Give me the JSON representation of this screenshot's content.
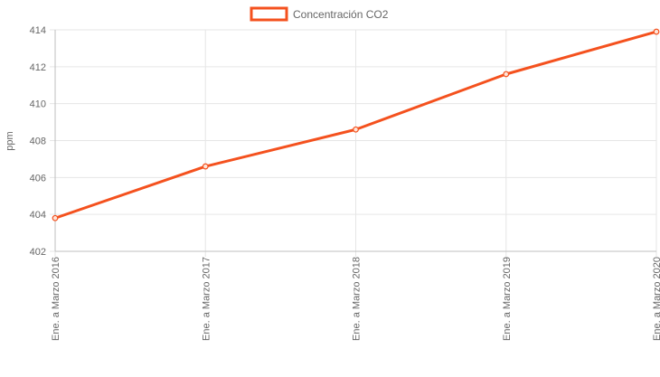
{
  "chart_data": {
    "type": "line",
    "title": "",
    "xlabel": "",
    "ylabel": "ppm",
    "categories": [
      "Ene. a Marzo 2016",
      "Ene. a Marzo 2017",
      "Ene. a Marzo 2018",
      "Ene. a Marzo 2019",
      "Ene. a Marzo 2020"
    ],
    "series": [
      {
        "name": "Concentración CO2",
        "values": [
          403.8,
          406.6,
          408.6,
          411.6,
          413.9
        ],
        "color": "#f4511e"
      }
    ],
    "ylim": [
      402,
      414
    ],
    "yticks": [
      "402",
      "404",
      "406",
      "408",
      "410",
      "412",
      "414"
    ],
    "grid": true,
    "legend_position": "top-center"
  }
}
